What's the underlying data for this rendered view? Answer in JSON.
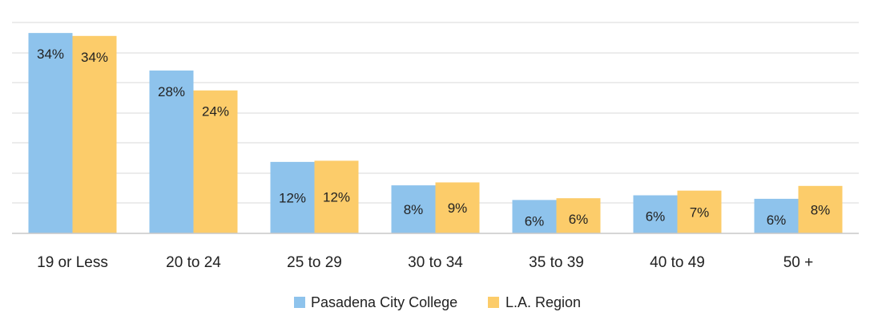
{
  "chart_data": {
    "type": "bar",
    "title": "",
    "xlabel": "",
    "ylabel": "",
    "ylim": [
      0,
      36
    ],
    "grid": true,
    "legend_position": "bottom",
    "categories": [
      "19 or Less",
      "20 to 24",
      "25 to 29",
      "30 to 34",
      "35 to 39",
      "40 to 49",
      "50 +"
    ],
    "series": [
      {
        "name": "Pasadena City College",
        "color": "#8ec3ec",
        "values": [
          34.2,
          27.8,
          12.2,
          8.2,
          5.7,
          6.5,
          5.9
        ],
        "labels": [
          "34%",
          "28%",
          "12%",
          "8%",
          "6%",
          "6%",
          "6%"
        ]
      },
      {
        "name": "L.A. Region",
        "color": "#fccc6a",
        "values": [
          33.7,
          24.4,
          12.4,
          8.7,
          6.0,
          7.3,
          8.1
        ],
        "labels": [
          "34%",
          "24%",
          "12%",
          "9%",
          "6%",
          "7%",
          "8%"
        ]
      }
    ]
  }
}
